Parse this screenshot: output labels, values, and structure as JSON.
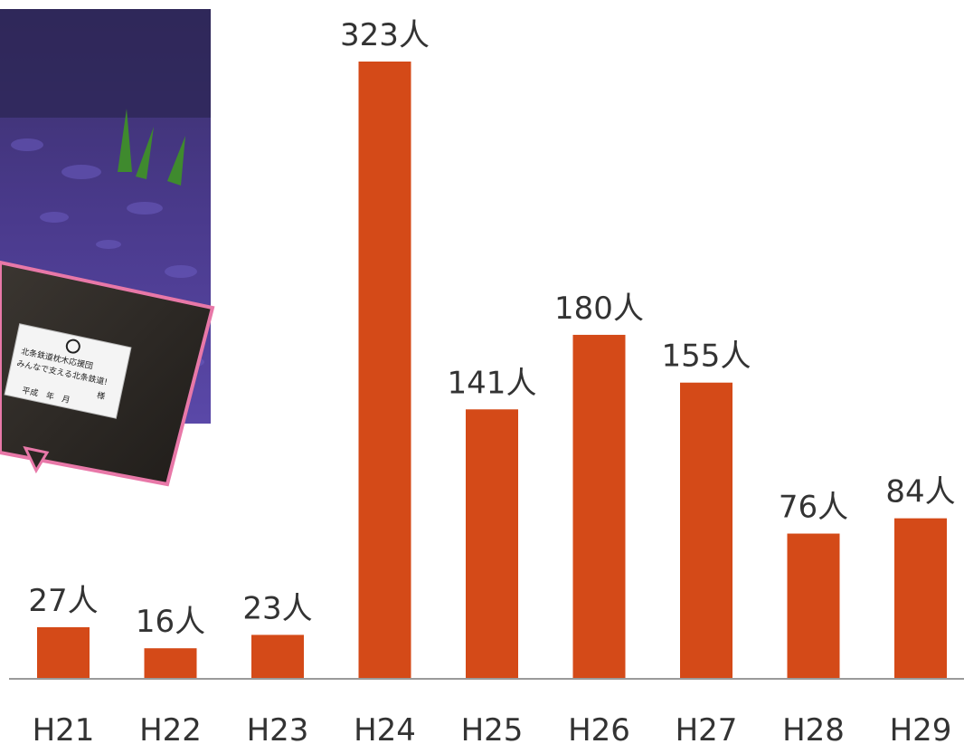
{
  "chart_data": {
    "type": "bar",
    "categories": [
      "H21",
      "H22",
      "H23",
      "H24",
      "H25",
      "H26",
      "H27",
      "H28",
      "H29"
    ],
    "values": [
      27,
      16,
      23,
      323,
      141,
      180,
      155,
      76,
      84
    ],
    "value_labels": [
      "27人",
      "16人",
      "23人",
      "323人",
      "141人",
      "180人",
      "155人",
      "76人",
      "84人"
    ],
    "unit": "人",
    "ylim": [
      0,
      323
    ],
    "grid": false,
    "legend": "none"
  },
  "colors": {
    "bar": "#D44A18",
    "axis": "#9a9a9a",
    "text": "#333333",
    "photo_frame": "#E878A8"
  },
  "photo": {
    "plaque_lines": [
      "北条鉄道枕木応援団",
      "みんなで支える北条鉄道!",
      "様",
      "平成　年　月"
    ]
  }
}
